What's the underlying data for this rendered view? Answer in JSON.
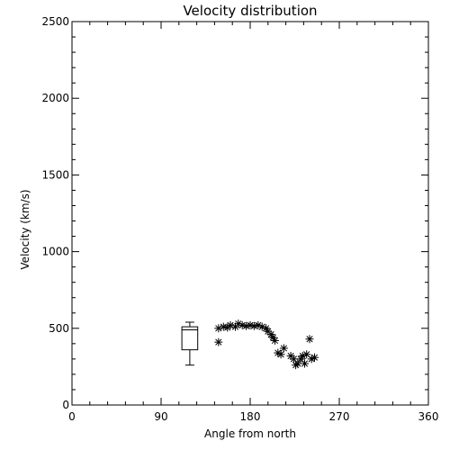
{
  "chart_data": {
    "type": "scatter",
    "title": "Velocity distribution",
    "xlabel": "Angle from north",
    "ylabel": "Velocity (km/s)",
    "xlim": [
      0,
      360
    ],
    "ylim": [
      0,
      2500
    ],
    "xticks": [
      "0",
      "90",
      "180",
      "270",
      "360"
    ],
    "yticks": [
      "0",
      "500",
      "1000",
      "1500",
      "2000",
      "2500"
    ],
    "grid": false,
    "legend": "none",
    "marker": "asterisk",
    "color": "#000000",
    "points": [
      {
        "x": 148,
        "y": 410
      },
      {
        "x": 148,
        "y": 500
      },
      {
        "x": 153,
        "y": 510
      },
      {
        "x": 157,
        "y": 505
      },
      {
        "x": 160,
        "y": 520
      },
      {
        "x": 165,
        "y": 510
      },
      {
        "x": 168,
        "y": 530
      },
      {
        "x": 172,
        "y": 520
      },
      {
        "x": 176,
        "y": 515
      },
      {
        "x": 180,
        "y": 520
      },
      {
        "x": 184,
        "y": 515
      },
      {
        "x": 188,
        "y": 520
      },
      {
        "x": 192,
        "y": 510
      },
      {
        "x": 196,
        "y": 500
      },
      {
        "x": 198,
        "y": 480
      },
      {
        "x": 201,
        "y": 460
      },
      {
        "x": 203,
        "y": 440
      },
      {
        "x": 205,
        "y": 420
      },
      {
        "x": 208,
        "y": 340
      },
      {
        "x": 211,
        "y": 330
      },
      {
        "x": 214,
        "y": 370
      },
      {
        "x": 221,
        "y": 320
      },
      {
        "x": 224,
        "y": 300
      },
      {
        "x": 226,
        "y": 260
      },
      {
        "x": 228,
        "y": 270
      },
      {
        "x": 231,
        "y": 300
      },
      {
        "x": 233,
        "y": 320
      },
      {
        "x": 235,
        "y": 270
      },
      {
        "x": 237,
        "y": 330
      },
      {
        "x": 240,
        "y": 430
      },
      {
        "x": 242,
        "y": 300
      },
      {
        "x": 245,
        "y": 310
      }
    ],
    "boxplot": {
      "x_left": 111,
      "x_right": 127,
      "whisker_low": 260,
      "q1": 360,
      "median": 490,
      "q3": 510,
      "whisker_high": 540
    }
  }
}
